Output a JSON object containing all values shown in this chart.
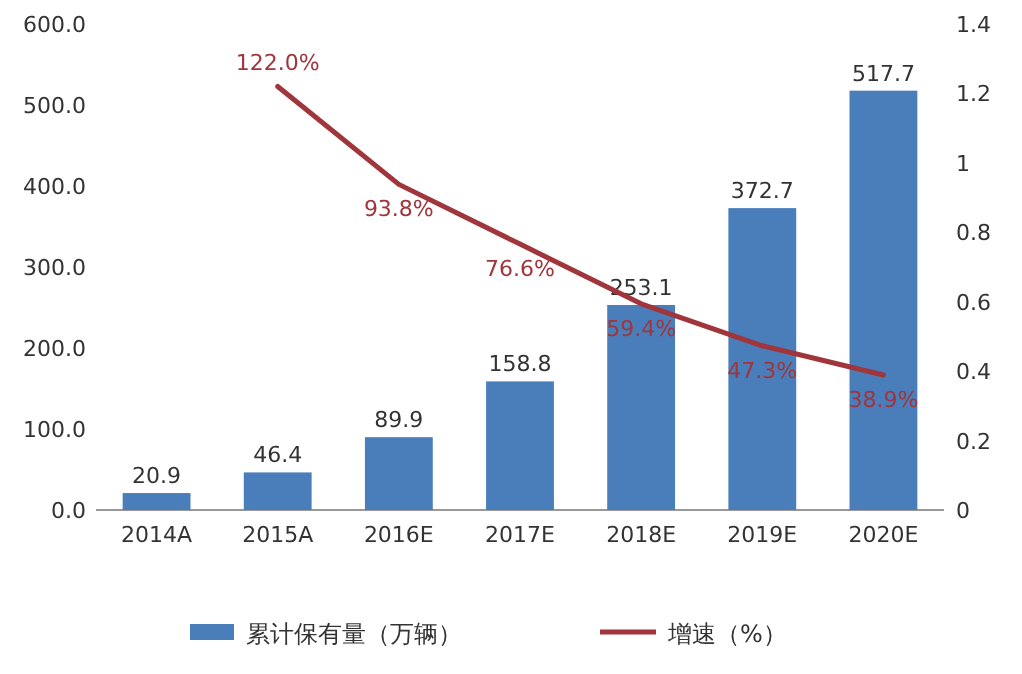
{
  "chart_data": {
    "type": "bar",
    "categories": [
      "2014A",
      "2015A",
      "2016E",
      "2017E",
      "2018E",
      "2019E",
      "2020E"
    ],
    "series": [
      {
        "name": "累计保有量（万辆）",
        "color": "#4a7ebb",
        "values": [
          20.9,
          46.4,
          89.9,
          158.8,
          253.1,
          372.7,
          517.7
        ],
        "value_labels": [
          "20.9",
          "46.4",
          "89.9",
          "158.8",
          "253.1",
          "372.7",
          "517.7"
        ]
      },
      {
        "name": "增速（%）",
        "type": "line",
        "axis": "y2",
        "color": "#a0353b",
        "values": [
          null,
          1.22,
          0.938,
          0.766,
          0.594,
          0.473,
          0.389
        ],
        "value_labels": [
          null,
          "122.0%",
          "93.8%",
          "76.6%",
          "59.4%",
          "47.3%",
          "38.9%"
        ]
      }
    ],
    "ylim": [
      0,
      600
    ],
    "yticks": [
      {
        "value": 0,
        "label": "0.0"
      },
      {
        "value": 100,
        "label": "100.0"
      },
      {
        "value": 200,
        "label": "200.0"
      },
      {
        "value": 300,
        "label": "300.0"
      },
      {
        "value": 400,
        "label": "400.0"
      },
      {
        "value": 500,
        "label": "500.0"
      },
      {
        "value": 600,
        "label": "600.0"
      }
    ],
    "y2lim": [
      0,
      1.4
    ],
    "y2ticks": [
      0,
      0.2,
      0.4,
      0.6,
      0.8,
      1,
      1.2,
      1.4
    ],
    "legend": "bottom"
  }
}
